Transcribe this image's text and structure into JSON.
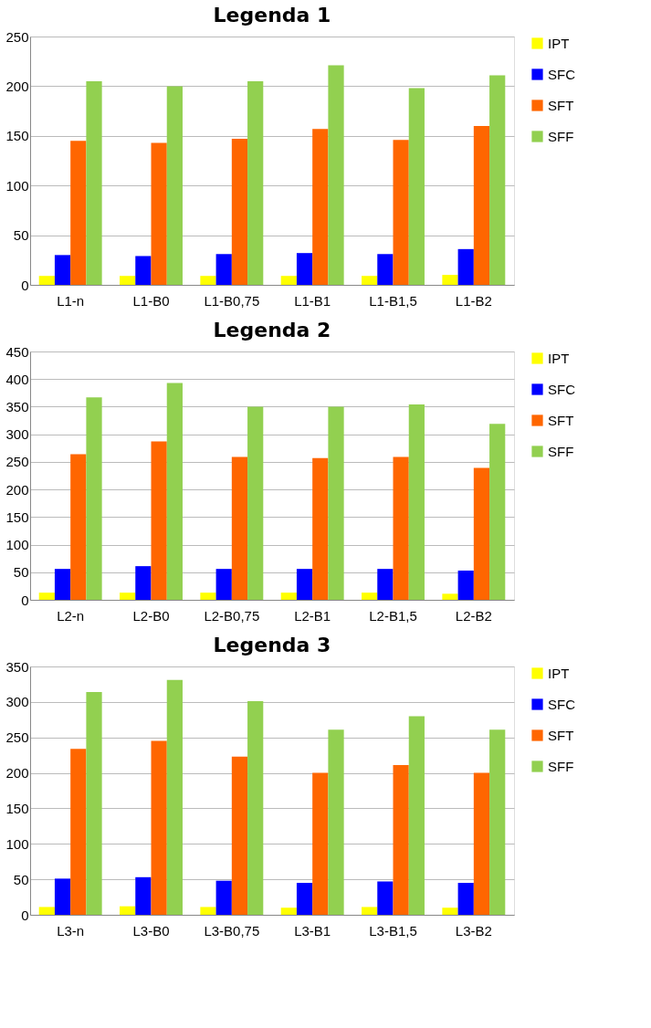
{
  "chart_data": [
    {
      "type": "bar",
      "title": "Legenda 1",
      "categories": [
        "L1-n",
        "L1-B0",
        "L1-B0,75",
        "L1-B1",
        "L1-B1,5",
        "L1-B2"
      ],
      "series": [
        {
          "name": "IPT",
          "color": "#ffff00",
          "values": [
            9,
            9,
            9,
            9,
            9,
            10
          ]
        },
        {
          "name": "SFC",
          "color": "#0000ff",
          "values": [
            30,
            29,
            31,
            32,
            31,
            36
          ]
        },
        {
          "name": "SFT",
          "color": "#ff6600",
          "values": [
            145,
            143,
            147,
            157,
            146,
            160
          ]
        },
        {
          "name": "SFF",
          "color": "#92d050",
          "values": [
            205,
            200,
            205,
            221,
            198,
            211
          ]
        }
      ],
      "ylim": [
        0,
        250
      ],
      "yticks": [
        0,
        50,
        100,
        150,
        200,
        250
      ],
      "grid": "y",
      "legend": "right"
    },
    {
      "type": "bar",
      "title": "Legenda 2",
      "categories": [
        "L2-n",
        "L2-B0",
        "L2-B0,75",
        "L2-B1",
        "L2-B1,5",
        "L2-B2"
      ],
      "series": [
        {
          "name": "IPT",
          "color": "#ffff00",
          "values": [
            13,
            13,
            13,
            13,
            13,
            11
          ]
        },
        {
          "name": "SFC",
          "color": "#0000ff",
          "values": [
            56,
            61,
            56,
            56,
            56,
            53
          ]
        },
        {
          "name": "SFT",
          "color": "#ff6600",
          "values": [
            264,
            287,
            259,
            257,
            259,
            239
          ]
        },
        {
          "name": "SFF",
          "color": "#92d050",
          "values": [
            367,
            393,
            350,
            350,
            354,
            319
          ]
        }
      ],
      "ylim": [
        0,
        450
      ],
      "yticks": [
        0,
        50,
        100,
        150,
        200,
        250,
        300,
        350,
        400,
        450
      ],
      "grid": "y",
      "legend": "right"
    },
    {
      "type": "bar",
      "title": "Legenda 3",
      "categories": [
        "L3-n",
        "L3-B0",
        "L3-B0,75",
        "L3-B1",
        "L3-B1,5",
        "L3-B2"
      ],
      "series": [
        {
          "name": "IPT",
          "color": "#ffff00",
          "values": [
            11,
            12,
            11,
            10,
            11,
            10
          ]
        },
        {
          "name": "SFC",
          "color": "#0000ff",
          "values": [
            51,
            53,
            48,
            45,
            47,
            45
          ]
        },
        {
          "name": "SFT",
          "color": "#ff6600",
          "values": [
            234,
            245,
            223,
            200,
            211,
            200
          ]
        },
        {
          "name": "SFF",
          "color": "#92d050",
          "values": [
            314,
            331,
            301,
            261,
            280,
            261
          ]
        }
      ],
      "ylim": [
        0,
        350
      ],
      "yticks": [
        0,
        50,
        100,
        150,
        200,
        250,
        300,
        350
      ],
      "grid": "y",
      "legend": "right"
    }
  ]
}
